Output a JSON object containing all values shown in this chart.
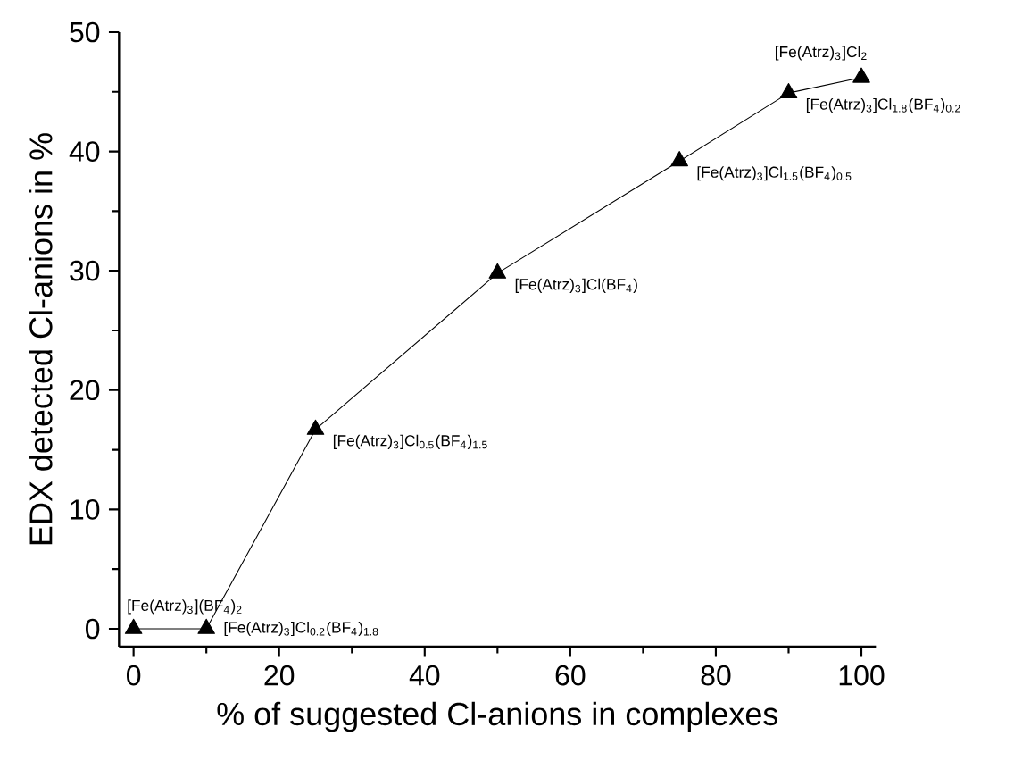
{
  "chart_data": {
    "type": "line",
    "xlabel": "% of suggested Cl-anions in complexes",
    "ylabel": "EDX detected Cl-anions in %",
    "x": [
      0,
      10,
      25,
      50,
      75,
      90,
      100
    ],
    "series": [
      {
        "color": "#000000",
        "values": [
          0,
          0,
          16.7,
          29.8,
          39.2,
          44.9,
          46.2
        ]
      }
    ],
    "marker": "triangle",
    "line_style": "solid",
    "xlim": [
      -2,
      102
    ],
    "ylim": [
      -1.5,
      50
    ],
    "xticks": [
      0,
      20,
      40,
      60,
      80,
      100
    ],
    "yticks": [
      0,
      10,
      20,
      30,
      40,
      50
    ],
    "annotations": [
      {
        "text": "[Fe(Atrz)$_{3}$](BF$_{4}$)$_{2}$",
        "x": 0,
        "y": 0
      },
      {
        "text": "[Fe(Atrz)$_{3}$]Cl$_{0.2}$(BF$_{4}$)$_{1.8}$",
        "x": 10,
        "y": 0
      },
      {
        "text": "[Fe(Atrz)$_{3}$]Cl$_{0.5}$(BF$_{4}$)$_{1.5}$",
        "x": 25,
        "y": 16.7
      },
      {
        "text": "[Fe(Atrz)$_{3}$]Cl(BF$_{4}$)",
        "x": 50,
        "y": 29.8
      },
      {
        "text": "[Fe(Atrz)$_{3}$]Cl$_{1.5}$(BF$_{4}$)$_{0.5}$",
        "x": 75,
        "y": 39.2
      },
      {
        "text": "[Fe(Atrz)$_{3}$]Cl$_{1.8}$(BF$_{4}$)$_{0.2}$",
        "x": 90,
        "y": 44.9
      },
      {
        "text": "[Fe(Atrz)$_{3}$]Cl$_{2}$",
        "x": 100,
        "y": 46.2
      }
    ]
  }
}
